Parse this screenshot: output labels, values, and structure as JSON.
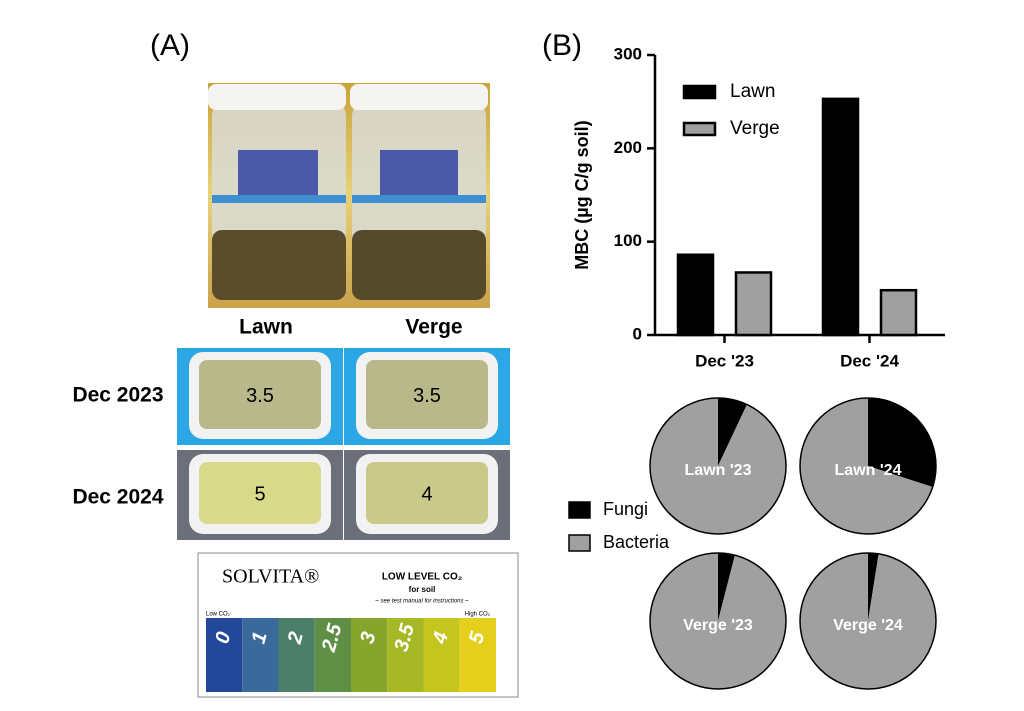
{
  "panel_a": {
    "label": "(A)",
    "columns": [
      "Lawn",
      "Verge"
    ],
    "rows": [
      {
        "label": "Dec 2023",
        "readings": [
          "3.5",
          "3.5"
        ]
      },
      {
        "label": "Dec 2024",
        "readings": [
          "5",
          "4"
        ]
      }
    ],
    "card": {
      "brand": "SOLVITA®",
      "title": "LOW LEVEL CO₂",
      "subtitle": "for soil",
      "note": "– see test manual for instructions –",
      "low": "Low CO₂",
      "high": "High CO₂",
      "scale": [
        {
          "label": "0",
          "color": "#23479a"
        },
        {
          "label": "1",
          "color": "#3a6a9c"
        },
        {
          "label": "2",
          "color": "#4c7f6a"
        },
        {
          "label": "2.5",
          "color": "#5f8f45"
        },
        {
          "label": "3",
          "color": "#86a52c"
        },
        {
          "label": "3.5",
          "color": "#a7b827"
        },
        {
          "label": "4",
          "color": "#c4c51f"
        },
        {
          "label": "5",
          "color": "#e4cf1c"
        }
      ]
    }
  },
  "panel_b": {
    "label": "(B)"
  },
  "chart_data": [
    {
      "type": "bar",
      "y_label": "MBC (µg C/g soil)",
      "categories": [
        "Dec '23",
        "Dec '24"
      ],
      "series": [
        {
          "name": "Lawn",
          "color": "#000000",
          "values": [
            86,
            253
          ]
        },
        {
          "name": "Verge",
          "color": "#a0a0a0",
          "values": [
            67,
            48
          ]
        }
      ],
      "ylim": [
        0,
        300
      ],
      "yticks": [
        0,
        100,
        200,
        300
      ]
    },
    {
      "type": "pie",
      "title": "Lawn '23",
      "categories": [
        "Fungi",
        "Bacteria"
      ],
      "colors": [
        "#000000",
        "#a0a0a0"
      ],
      "values": [
        7,
        93
      ]
    },
    {
      "type": "pie",
      "title": "Lawn '24",
      "categories": [
        "Fungi",
        "Bacteria"
      ],
      "colors": [
        "#000000",
        "#a0a0a0"
      ],
      "values": [
        30,
        70
      ]
    },
    {
      "type": "pie",
      "title": "Verge '23",
      "categories": [
        "Fungi",
        "Bacteria"
      ],
      "colors": [
        "#000000",
        "#a0a0a0"
      ],
      "values": [
        4,
        96
      ]
    },
    {
      "type": "pie",
      "title": "Verge '24",
      "categories": [
        "Fungi",
        "Bacteria"
      ],
      "colors": [
        "#000000",
        "#a0a0a0"
      ],
      "values": [
        2.5,
        97.5
      ]
    }
  ]
}
